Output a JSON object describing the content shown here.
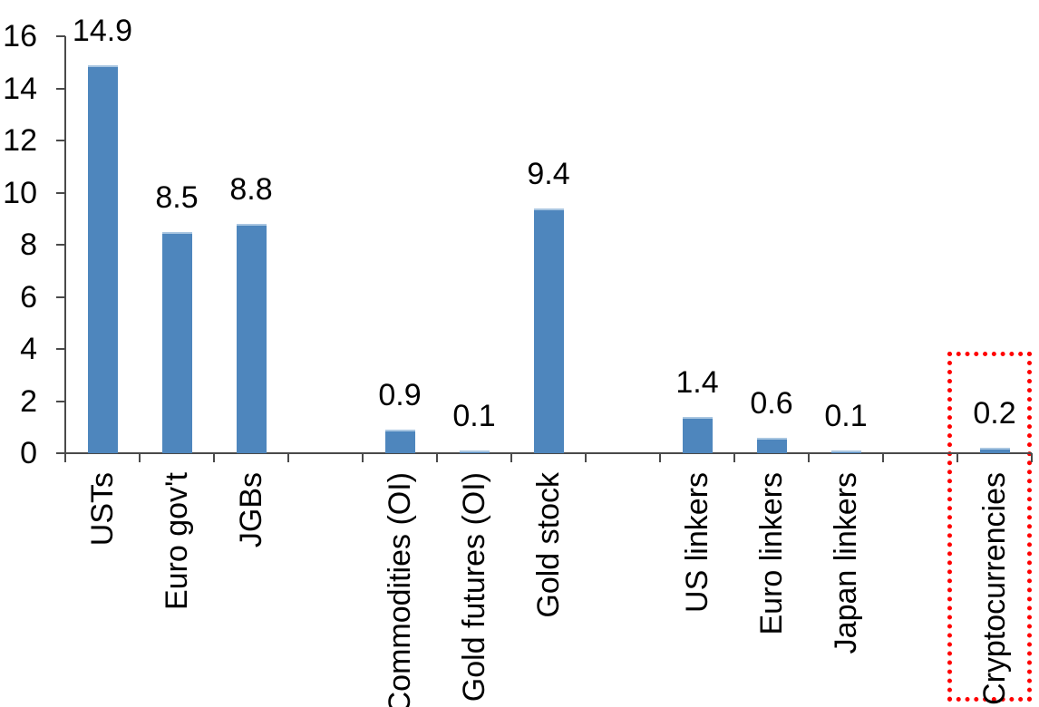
{
  "chart_data": {
    "type": "bar",
    "title": "",
    "xlabel": "",
    "ylabel": "",
    "ylim": [
      0,
      16
    ],
    "yticks": [
      0,
      2,
      4,
      6,
      8,
      10,
      12,
      14,
      16
    ],
    "grid": false,
    "legend": false,
    "categories": [
      "USTs",
      "Euro gov't",
      "JGBs",
      "",
      "Commodities (OI)",
      "Gold futures (OI)",
      "Gold stock",
      "",
      "US linkers",
      "Euro linkers",
      "Japan linkers",
      "",
      "Cryptocurrencies"
    ],
    "values": [
      14.9,
      8.5,
      8.8,
      null,
      0.9,
      0.1,
      9.4,
      null,
      1.4,
      0.6,
      0.1,
      null,
      0.2
    ],
    "data_labels": [
      "14.9",
      "8.5",
      "8.8",
      "",
      "0.9",
      "0.1",
      "9.4",
      "",
      "1.4",
      "0.6",
      "0.1",
      "",
      "0.2"
    ],
    "bar_color": "#4e86bd",
    "bar_top_edge_color": "#a9c6e1",
    "axis_color": "#4a4a4a",
    "text_color": "#000000",
    "highlight": {
      "category": "Cryptocurrencies",
      "style": "red-dotted-box",
      "color": "#ff0000"
    }
  }
}
